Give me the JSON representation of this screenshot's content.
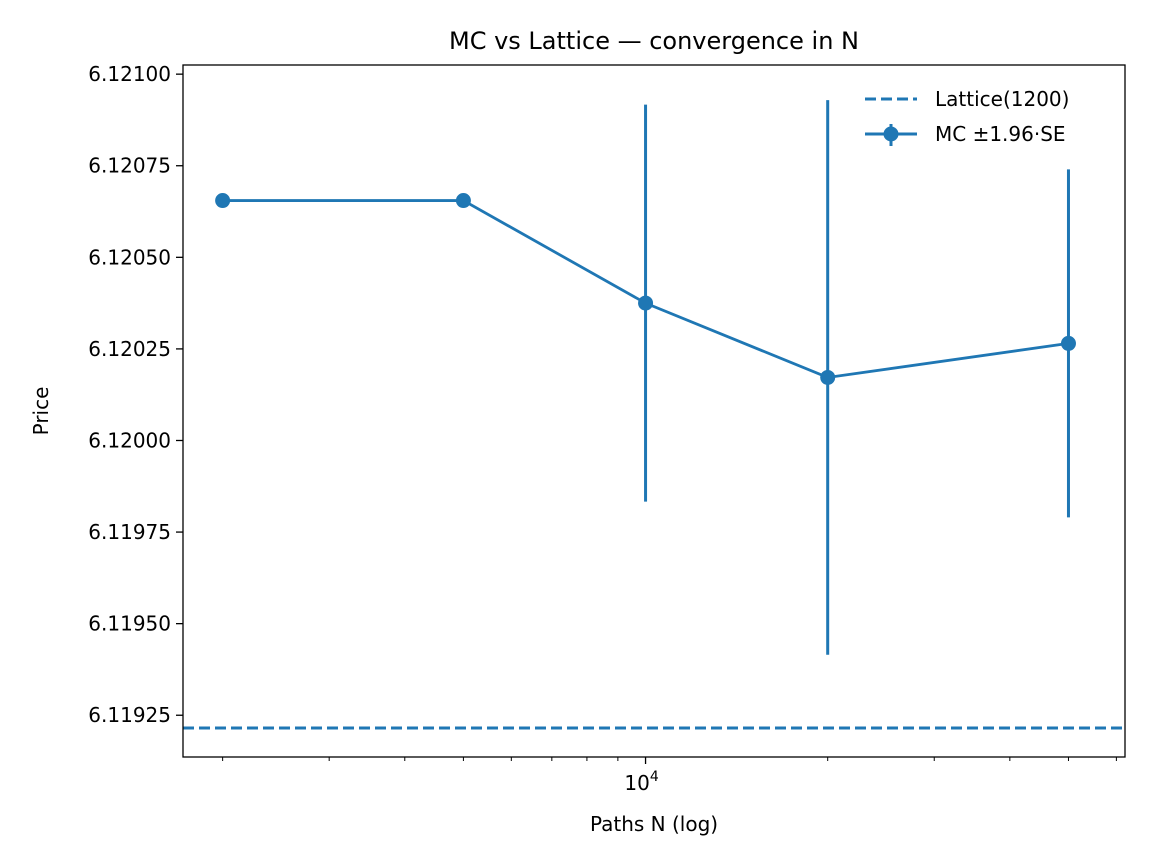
{
  "chart_data": {
    "type": "line",
    "title": "MC vs Lattice — convergence in N",
    "xlabel": "Paths N (log)",
    "ylabel": "Price",
    "xscale": "log",
    "xlim": [
      1720,
      62000
    ],
    "ylim": [
      6.119136,
      6.121025
    ],
    "x_major_ticks": [
      {
        "value": 10000,
        "base": "10",
        "exp": "4"
      }
    ],
    "y_ticks": [
      "6.11925",
      "6.11950",
      "6.11975",
      "6.12000",
      "6.12025",
      "6.12050",
      "6.12075",
      "6.12100"
    ],
    "grid": false,
    "legend_position": "top-right",
    "color": "#1f77b4",
    "series": [
      {
        "name": "Lattice(1200)",
        "kind": "hline",
        "value": 6.119215
      },
      {
        "name": "MC ±1.96·SE",
        "kind": "errorbar",
        "x": [
          2000,
          5000,
          10000,
          20000,
          50000
        ],
        "y": [
          6.120655,
          6.120655,
          6.120375,
          6.120172,
          6.120265
        ],
        "err": [
          0,
          0,
          0.000542,
          0.000757,
          0.000475
        ]
      }
    ]
  }
}
